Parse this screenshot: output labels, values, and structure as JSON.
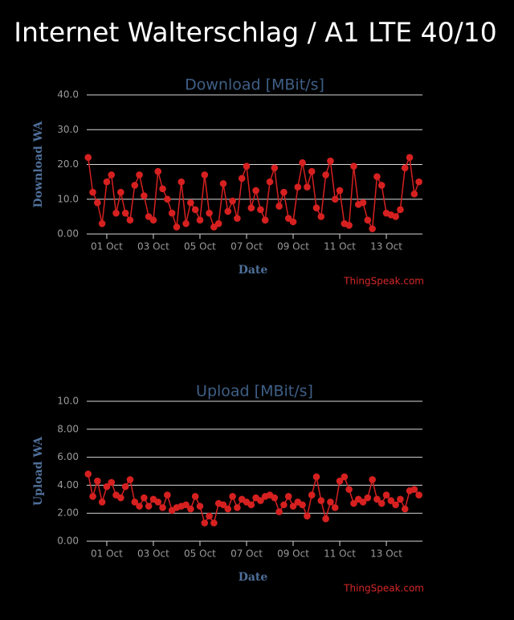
{
  "title": "Internet Walterschlag / A1 LTE 40/10",
  "chart_data": [
    {
      "type": "line",
      "title": "Download [MBit/s]",
      "xlabel": "Date",
      "ylabel": "Download WA",
      "credit": "ThingSpeak.com",
      "x": [
        0.2,
        0.4,
        0.6,
        0.8,
        1,
        1.2,
        1.4,
        1.6,
        1.8,
        2,
        2.2,
        2.4,
        2.6,
        2.8,
        3,
        3.2,
        3.4,
        3.6,
        3.8,
        4,
        4.2,
        4.4,
        4.6,
        4.8,
        5,
        5.2,
        5.4,
        5.6,
        5.8,
        6,
        6.2,
        6.4,
        6.6,
        6.8,
        7,
        7.2,
        7.4,
        7.6,
        7.8,
        8,
        8.2,
        8.4,
        8.6,
        8.8,
        9,
        9.2,
        9.4,
        9.6,
        9.8,
        10,
        10.2,
        10.4,
        10.6,
        10.8,
        11,
        11.2,
        11.4,
        11.6,
        11.8,
        12,
        12.2,
        12.4,
        12.6,
        12.8,
        13,
        13.2,
        13.4,
        13.6,
        13.8,
        14,
        14.2,
        14.4
      ],
      "series": [
        {
          "name": "Download WA",
          "color": "#d62020",
          "values": [
            22,
            12,
            9,
            3,
            15,
            17,
            6,
            12,
            6,
            4,
            14,
            17,
            11,
            5,
            4,
            18,
            13,
            10,
            6,
            2,
            15,
            3,
            9,
            7,
            4,
            17,
            6,
            2,
            3,
            14.5,
            6.5,
            9.5,
            4.5,
            16,
            19.5,
            7.5,
            12.5,
            7,
            4,
            15,
            19,
            8,
            12,
            4.5,
            3.5,
            13.5,
            20.5,
            13.5,
            18,
            7.5,
            5,
            17,
            21,
            10,
            12.5,
            3,
            2.5,
            19.5,
            8.5,
            9,
            4,
            1.5,
            16.5,
            14,
            6,
            5.5,
            5,
            7,
            19,
            22,
            11.5,
            15
          ]
        }
      ],
      "xlim": [
        0.14,
        14.55
      ],
      "xticks": [
        {
          "value": 1,
          "label": "01 Oct"
        },
        {
          "value": 3,
          "label": "03 Oct"
        },
        {
          "value": 5,
          "label": "05 Oct"
        },
        {
          "value": 7,
          "label": "07 Oct"
        },
        {
          "value": 9,
          "label": "09 Oct"
        },
        {
          "value": 11,
          "label": "11 Oct"
        },
        {
          "value": 13,
          "label": "13 Oct"
        }
      ],
      "ylim": [
        0,
        40
      ],
      "yticks": [
        {
          "value": 0,
          "label": "0.00"
        },
        {
          "value": 10,
          "label": "10.0"
        },
        {
          "value": 20,
          "label": "20.0"
        },
        {
          "value": 30,
          "label": "30.0"
        },
        {
          "value": 40,
          "label": "40.0"
        }
      ],
      "grid": true
    },
    {
      "type": "line",
      "title": "Upload [MBit/s]",
      "xlabel": "Date",
      "ylabel": "Upload WA",
      "credit": "ThingSpeak.com",
      "x": [
        0.2,
        0.4,
        0.6,
        0.8,
        1,
        1.2,
        1.4,
        1.6,
        1.8,
        2,
        2.2,
        2.4,
        2.6,
        2.8,
        3,
        3.2,
        3.4,
        3.6,
        3.8,
        4,
        4.2,
        4.4,
        4.6,
        4.8,
        5,
        5.2,
        5.4,
        5.6,
        5.8,
        6,
        6.2,
        6.4,
        6.6,
        6.8,
        7,
        7.2,
        7.4,
        7.6,
        7.8,
        8,
        8.2,
        8.4,
        8.6,
        8.8,
        9,
        9.2,
        9.4,
        9.6,
        9.8,
        10,
        10.2,
        10.4,
        10.6,
        10.8,
        11,
        11.2,
        11.4,
        11.6,
        11.8,
        12,
        12.2,
        12.4,
        12.6,
        12.8,
        13,
        13.2,
        13.4,
        13.6,
        13.8,
        14,
        14.2,
        14.4
      ],
      "series": [
        {
          "name": "Upload WA",
          "color": "#d62020",
          "values": [
            4.8,
            3.2,
            4.3,
            2.8,
            3.9,
            4.2,
            3.3,
            3.1,
            3.9,
            4.4,
            2.8,
            2.5,
            3.1,
            2.5,
            3.0,
            2.8,
            2.4,
            3.3,
            2.2,
            2.4,
            2.5,
            2.6,
            2.3,
            3.2,
            2.5,
            1.3,
            1.8,
            1.3,
            2.7,
            2.6,
            2.3,
            3.2,
            2.4,
            3.0,
            2.8,
            2.6,
            3.1,
            2.9,
            3.2,
            3.3,
            3.1,
            2.1,
            2.6,
            3.2,
            2.5,
            2.8,
            2.6,
            1.8,
            3.3,
            4.6,
            2.9,
            1.6,
            2.8,
            2.4,
            4.3,
            4.6,
            3.7,
            2.7,
            3.0,
            2.8,
            3.1,
            4.4,
            3.0,
            2.7,
            3.3,
            2.9,
            2.6,
            3.0,
            2.3,
            3.6,
            3.7,
            3.3
          ]
        }
      ],
      "xlim": [
        0.14,
        14.55
      ],
      "xticks": [
        {
          "value": 1,
          "label": "01 Oct"
        },
        {
          "value": 3,
          "label": "03 Oct"
        },
        {
          "value": 5,
          "label": "05 Oct"
        },
        {
          "value": 7,
          "label": "07 Oct"
        },
        {
          "value": 9,
          "label": "09 Oct"
        },
        {
          "value": 11,
          "label": "11 Oct"
        },
        {
          "value": 13,
          "label": "13 Oct"
        }
      ],
      "ylim": [
        0,
        10
      ],
      "yticks": [
        {
          "value": 0,
          "label": "0.00"
        },
        {
          "value": 2,
          "label": "2.00"
        },
        {
          "value": 4,
          "label": "4.00"
        },
        {
          "value": 6,
          "label": "6.00"
        },
        {
          "value": 8,
          "label": "8.00"
        },
        {
          "value": 10,
          "label": "10.0"
        }
      ],
      "grid": true
    }
  ]
}
